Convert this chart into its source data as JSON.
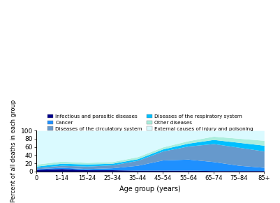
{
  "age_groups": [
    "0",
    "1–14",
    "15–24",
    "25–34",
    "35–44",
    "45–54",
    "55–64",
    "65–74",
    "75–84",
    "85+"
  ],
  "stack_order": [
    "Infectious and parasitic diseases",
    "Cancer",
    "Diseases of the circulatory system",
    "Diseases of the respiratory system",
    "Other diseases",
    "External causes of injury and poisoning"
  ],
  "raw_data": {
    "Infectious and parasitic diseases": [
      5,
      7,
      4,
      4,
      3,
      3,
      3,
      2,
      2,
      2
    ],
    "Cancer": [
      2,
      3,
      3,
      5,
      12,
      25,
      27,
      22,
      13,
      8
    ],
    "Diseases of the circulatory system": [
      3,
      5,
      6,
      7,
      12,
      22,
      32,
      44,
      44,
      40
    ],
    "Diseases of the respiratory system": [
      3,
      5,
      5,
      4,
      4,
      5,
      7,
      10,
      12,
      14
    ],
    "Other diseases": [
      5,
      5,
      4,
      4,
      5,
      5,
      6,
      8,
      10,
      12
    ],
    "External causes of injury and poisoning": [
      82,
      75,
      78,
      76,
      64,
      40,
      25,
      14,
      19,
      24
    ]
  },
  "colors": {
    "Infectious and parasitic diseases": "#00008B",
    "Cancer": "#1E90FF",
    "Diseases of the circulatory system": "#6699CC",
    "Diseases of the respiratory system": "#00BFFF",
    "Other diseases": "#AAEEDD",
    "External causes of injury and poisoning": "#DAFAFF"
  },
  "legend_order": [
    [
      "Infectious and parasitic diseases",
      "Cancer"
    ],
    [
      "Diseases of the circulatory system",
      "Diseases of the respiratory system"
    ],
    [
      "Other diseases",
      "External causes of injury and poisoning"
    ]
  ],
  "ylabel": "Percent of all deaths in each group",
  "xlabel": "Age group (years)",
  "ylim": [
    0,
    100
  ],
  "background_color": "#ffffff"
}
